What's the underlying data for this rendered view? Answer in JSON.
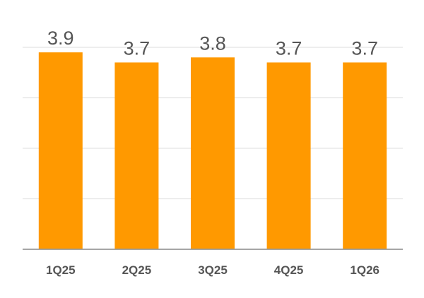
{
  "chart_data": {
    "type": "bar",
    "title": "",
    "xlabel": "",
    "ylabel": "",
    "categories": [
      "1Q25",
      "2Q25",
      "3Q25",
      "4Q25",
      "1Q26"
    ],
    "values": [
      3.9,
      3.7,
      3.8,
      3.7,
      3.7
    ],
    "value_labels": [
      "3.9",
      "3.7",
      "3.8",
      "3.7",
      "3.7"
    ],
    "ylim": [
      0,
      4.0
    ],
    "gridlines": [
      1.0,
      2.0,
      3.0,
      4.0
    ],
    "grid": true,
    "legend": "none",
    "colors": {
      "bar": "#ff9900",
      "grid": "#e3e3e3",
      "axis": "#9a9a9a",
      "text": "#555555"
    }
  }
}
